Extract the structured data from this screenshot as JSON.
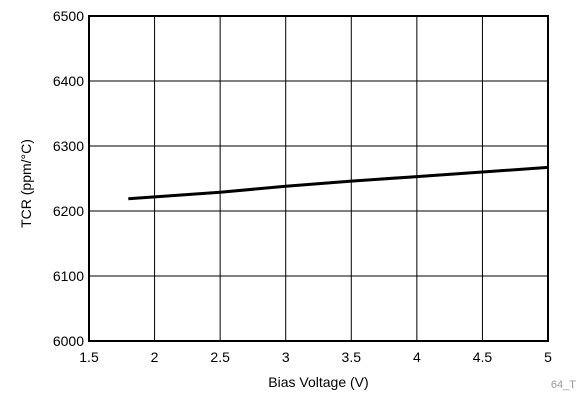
{
  "chart_data": {
    "type": "line",
    "title": "",
    "xlabel": "Bias Voltage (V)",
    "ylabel": "TCR (ppm/°C)",
    "xlim": [
      1.5,
      5
    ],
    "ylim": [
      6000,
      6500
    ],
    "xticks": [
      1.5,
      2,
      2.5,
      3,
      3.5,
      4,
      4.5,
      5
    ],
    "xtick_labels": [
      "1.5",
      "2",
      "2.5",
      "3",
      "3.5",
      "4",
      "4.5",
      "5"
    ],
    "yticks": [
      6000,
      6100,
      6200,
      6300,
      6400,
      6500
    ],
    "ytick_labels": [
      "6000",
      "6100",
      "6200",
      "6300",
      "6400",
      "6500"
    ],
    "grid": true,
    "legend": "none",
    "series": [
      {
        "color": "#000000",
        "x": [
          1.8,
          2.5,
          3.0,
          3.5,
          4.0,
          4.5,
          5.0
        ],
        "y": [
          6219,
          6229,
          6238,
          6246,
          6253,
          6260,
          6267
        ]
      }
    ]
  },
  "figure_id": "64_T"
}
